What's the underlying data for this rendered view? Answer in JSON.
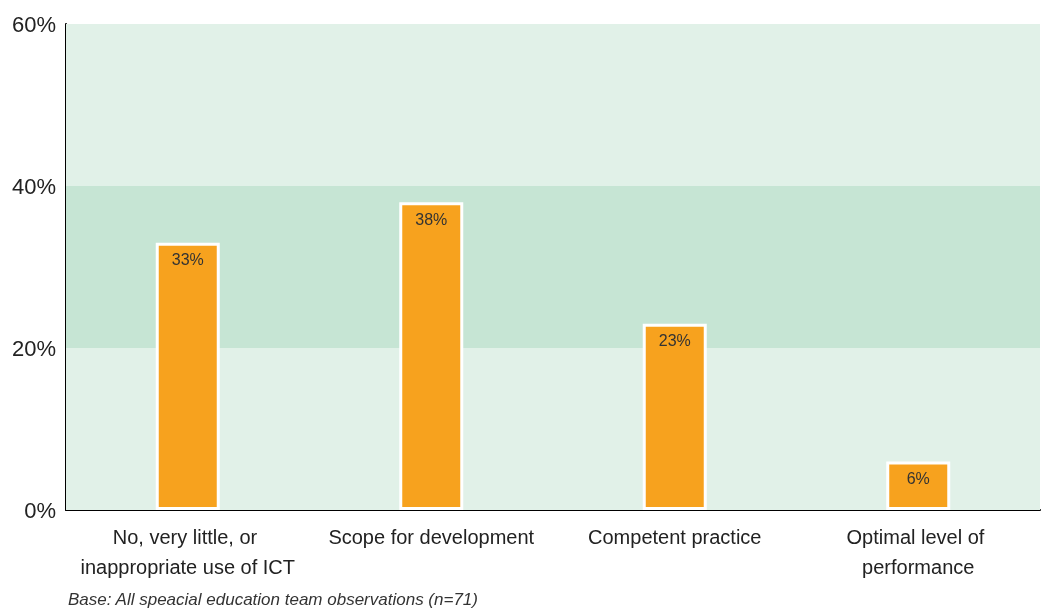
{
  "chart_data": {
    "type": "bar",
    "categories": [
      "No, very little, or inappropriate use of ICT",
      "Scope for development",
      "Competent practice",
      "Optimal level of performance"
    ],
    "values": [
      33,
      38,
      23,
      6
    ],
    "color": "#f7a21e",
    "value_labels": [
      "33%",
      "38%",
      "23%",
      "6%"
    ],
    "ylim": [
      0,
      60
    ],
    "yticks": [
      {
        "value": 0,
        "label": "0%"
      },
      {
        "value": 20,
        "label": "20%"
      },
      {
        "value": 40,
        "label": "40%"
      },
      {
        "value": 60,
        "label": "60%"
      }
    ],
    "bands": [
      {
        "axis": "y",
        "from": 0,
        "to": 20,
        "color": "#e1f1e8"
      },
      {
        "axis": "y",
        "from": 20,
        "to": 40,
        "color": "#c6e5d4"
      },
      {
        "axis": "y",
        "from": 40,
        "to": 60,
        "color": "#e1f1e8"
      }
    ],
    "annotations": [
      "Base: All speacial education team observations (n=71)"
    ]
  }
}
